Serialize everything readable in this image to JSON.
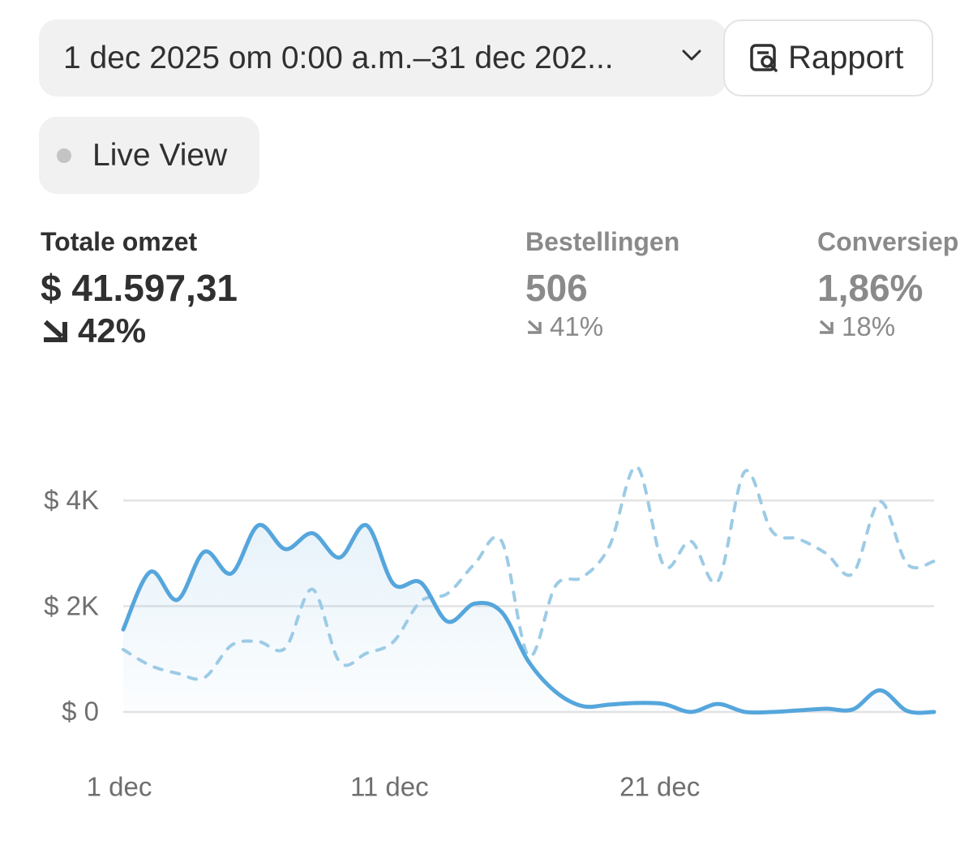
{
  "header": {
    "date_range": "1 dec 2025 om 0:00 a.m.–31 dec 202...",
    "report_button": "Rapport",
    "live_view": "Live View"
  },
  "metrics": [
    {
      "title": "Totale omzet",
      "value": "$ 41.597,31",
      "change": "42%"
    },
    {
      "title": "Bestellingen",
      "value": "506",
      "change": "41%"
    },
    {
      "title": "Conversiep",
      "value": "1,86%",
      "change": "18%"
    }
  ],
  "chart_data": {
    "type": "line",
    "categories": [
      "1 dec",
      null,
      null,
      null,
      null,
      null,
      null,
      null,
      null,
      null,
      "11 dec",
      null,
      null,
      null,
      null,
      null,
      null,
      null,
      null,
      null,
      "21 dec",
      null,
      null,
      null,
      null,
      null,
      null,
      null,
      null,
      null,
      null
    ],
    "series": [
      {
        "color": "#55a6dc",
        "style": "solid",
        "area": true,
        "values": [
          1560,
          2650,
          2120,
          3030,
          2620,
          3530,
          3080,
          3380,
          2920,
          3530,
          2420,
          2450,
          1710,
          2050,
          1890,
          950,
          380,
          110,
          140,
          170,
          150,
          0,
          150,
          0,
          0,
          30,
          60,
          50,
          410,
          20,
          0
        ]
      },
      {
        "color": "#9ccbe6",
        "style": "dashed",
        "values": [
          1180,
          880,
          730,
          650,
          1260,
          1330,
          1210,
          2320,
          950,
          1110,
          1330,
          2090,
          2240,
          2800,
          3230,
          1060,
          2390,
          2550,
          3150,
          4640,
          2770,
          3230,
          2470,
          4550,
          3420,
          3270,
          3000,
          2620,
          3980,
          2800,
          2850
        ]
      }
    ],
    "ylim": [
      -200,
      4800
    ],
    "yticks": [
      {
        "value": 0,
        "label": "$ 0"
      },
      {
        "value": 2000,
        "label": "$ 2K"
      },
      {
        "value": 4000,
        "label": "$ 4K"
      }
    ],
    "grid": true
  }
}
